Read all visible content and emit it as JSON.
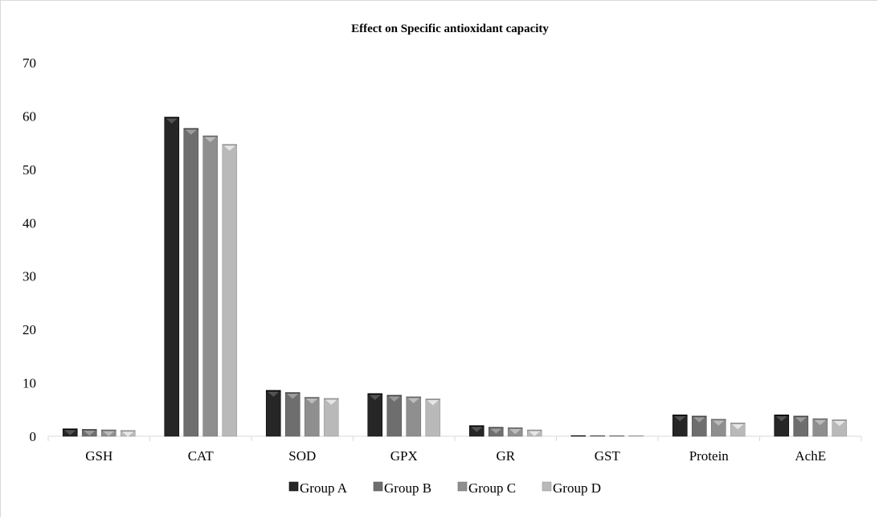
{
  "chart_data": {
    "type": "bar",
    "title": "Effect on Specific antioxidant capacity",
    "xlabel": "",
    "ylabel": "",
    "categories": [
      "GSH",
      "CAT",
      "SOD",
      "GPX",
      "GR",
      "GST",
      "Protein",
      "AchE"
    ],
    "ylim": [
      0,
      70
    ],
    "yticks": [
      "0",
      "10",
      "20",
      "30",
      "40",
      "50",
      "60",
      "70"
    ],
    "grid": false,
    "legend": "bottom",
    "series": [
      {
        "name": "Group A",
        "color": "#262626",
        "values": [
          1.4,
          59.8,
          8.6,
          8.0,
          2.0,
          0.1,
          4.0,
          4.0
        ]
      },
      {
        "name": "Group B",
        "color": "#6e6e6e",
        "values": [
          1.3,
          57.7,
          8.2,
          7.7,
          1.7,
          0.1,
          3.8,
          3.8
        ]
      },
      {
        "name": "Group C",
        "color": "#8f8f8f",
        "values": [
          1.2,
          56.3,
          7.3,
          7.4,
          1.6,
          0.1,
          3.2,
          3.3
        ]
      },
      {
        "name": "Group D",
        "color": "#b9b9b9",
        "values": [
          1.1,
          54.7,
          7.1,
          7.0,
          1.2,
          0.1,
          2.5,
          3.1
        ]
      }
    ]
  }
}
